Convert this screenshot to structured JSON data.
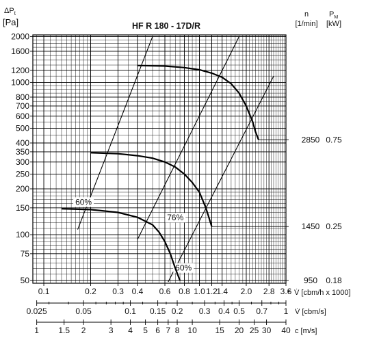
{
  "chart_data": {
    "type": "line",
    "title": "HF R 180 - 17D/R",
    "ylabel_symbol": "ΔP",
    "ylabel_subscript": "t",
    "ylabel_unit": "[Pa]",
    "y_scale": "log",
    "ylim": [
      48,
      2050
    ],
    "y_ticks": [
      50,
      75,
      100,
      150,
      200,
      250,
      300,
      350,
      400,
      500,
      600,
      700,
      800,
      1000,
      1200,
      1600,
      2000
    ],
    "x_scale": "log",
    "xlim": [
      0.085,
      3.6
    ],
    "x_axes": [
      {
        "label": "V̇ [cbm/h x 1000]",
        "ticks": [
          {
            "v": 0.1,
            "label": "0.1"
          },
          {
            "v": 0.2,
            "label": "0.2"
          },
          {
            "v": 0.3,
            "label": "0.3"
          },
          {
            "v": 0.4,
            "label": "0.4"
          },
          {
            "v": 0.6,
            "label": "0.6"
          },
          {
            "v": 0.8,
            "label": "0.8"
          },
          {
            "v": 1.0,
            "label": "1.0"
          },
          {
            "v": 1.2,
            "label": "1.2"
          },
          {
            "v": 1.4,
            "label": "1.4"
          },
          {
            "v": 2.0,
            "label": "2.0"
          },
          {
            "v": 2.8,
            "label": "2.8"
          },
          {
            "v": 3.6,
            "label": "3.6"
          }
        ]
      },
      {
        "label": "V̇ [cbm/s]",
        "ticks": [
          {
            "v": 0.025,
            "label": "0.025"
          },
          {
            "v": 0.05,
            "label": "0.05"
          },
          {
            "v": 0.1,
            "label": "0.1"
          },
          {
            "v": 0.15,
            "label": "0.15"
          },
          {
            "v": 0.2,
            "label": "0.2"
          },
          {
            "v": 0.3,
            "label": "0.3"
          },
          {
            "v": 0.4,
            "label": "0.4"
          },
          {
            "v": 0.5,
            "label": "0.5"
          },
          {
            "v": 0.7,
            "label": "0.7"
          },
          {
            "v": 1,
            "label": "1"
          }
        ]
      },
      {
        "label": "c [m/s]",
        "ticks": [
          {
            "v": 1,
            "label": "1"
          },
          {
            "v": 1.5,
            "label": "1.5"
          },
          {
            "v": 2,
            "label": "2"
          },
          {
            "v": 3,
            "label": "3"
          },
          {
            "v": 4,
            "label": "4"
          },
          {
            "v": 5,
            "label": "5"
          },
          {
            "v": 6,
            "label": "6"
          },
          {
            "v": 7,
            "label": "7"
          },
          {
            "v": 8,
            "label": "8"
          },
          {
            "v": 10,
            "label": "10"
          },
          {
            "v": 15,
            "label": "15"
          },
          {
            "v": 20,
            "label": "20"
          },
          {
            "v": 25,
            "label": "25"
          },
          {
            "v": 30,
            "label": "30"
          },
          {
            "v": 40,
            "label": "40"
          }
        ]
      }
    ],
    "right_headers": {
      "n_label": "n",
      "n_unit": "[1/min]",
      "p_label": "P",
      "p_subscript": "M",
      "p_unit": "[kW]"
    },
    "series": [
      {
        "name": "2850",
        "power": "0.75",
        "points": [
          [
            0.4,
            1290
          ],
          [
            0.6,
            1280
          ],
          [
            0.8,
            1250
          ],
          [
            1.0,
            1210
          ],
          [
            1.2,
            1150
          ],
          [
            1.4,
            1080
          ],
          [
            1.6,
            980
          ],
          [
            1.8,
            850
          ],
          [
            2.0,
            700
          ],
          [
            2.2,
            550
          ],
          [
            2.3,
            470
          ],
          [
            2.4,
            420
          ]
        ]
      },
      {
        "name": "1450",
        "power": "0.25",
        "points": [
          [
            0.2,
            345
          ],
          [
            0.3,
            340
          ],
          [
            0.4,
            330
          ],
          [
            0.5,
            318
          ],
          [
            0.6,
            300
          ],
          [
            0.7,
            278
          ],
          [
            0.8,
            250
          ],
          [
            0.9,
            220
          ],
          [
            1.0,
            190
          ],
          [
            1.1,
            150
          ],
          [
            1.15,
            130
          ],
          [
            1.2,
            113
          ]
        ]
      },
      {
        "name": "950",
        "power": "0.18",
        "points": [
          [
            0.13,
            148
          ],
          [
            0.2,
            146
          ],
          [
            0.3,
            140
          ],
          [
            0.4,
            130
          ],
          [
            0.5,
            116
          ],
          [
            0.55,
            104
          ],
          [
            0.6,
            90
          ],
          [
            0.65,
            75
          ],
          [
            0.7,
            60
          ],
          [
            0.75,
            50
          ]
        ]
      }
    ],
    "efficiency_lines": [
      {
        "label": "60%",
        "label_at": [
          0.18,
          157
        ],
        "points": [
          [
            0.165,
            108
          ],
          [
            0.5,
            2000
          ]
        ]
      },
      {
        "label": "76%",
        "label_at": [
          0.7,
          124
        ],
        "points": [
          [
            0.4,
            93
          ],
          [
            1.8,
            2000
          ]
        ]
      },
      {
        "label": "60%",
        "label_at": [
          0.79,
          58
        ],
        "points": [
          [
            0.63,
            49
          ],
          [
            3.0,
            1100
          ]
        ]
      }
    ]
  }
}
